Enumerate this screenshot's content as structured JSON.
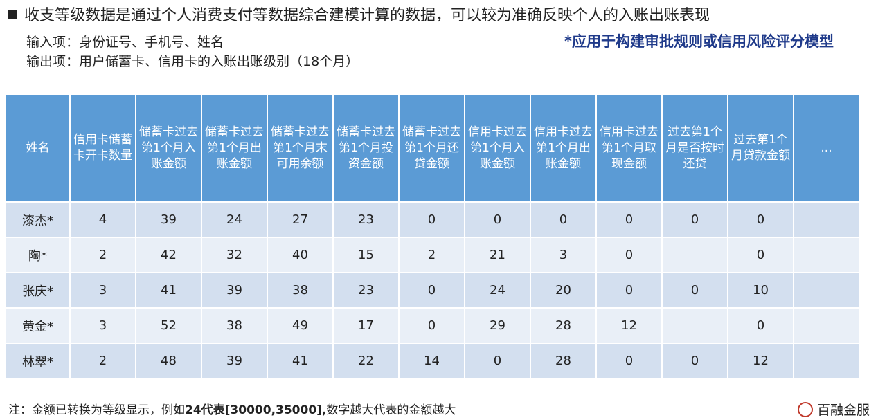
{
  "header": {
    "title": "收支等级数据是通过个人消费支付等数据综合建模计算的数据，可以较为准确反映个人的入账出账表现"
  },
  "info": {
    "input": "输入项：身份证号、手机号、姓名",
    "output": "输出项：用户储蓄卡、信用卡的入账出账级别（18个月）",
    "application": "*应用于构建审批规则或信用风险评分模型"
  },
  "table": {
    "columns": [
      "姓名",
      "信用卡储蓄卡开卡数量",
      "储蓄卡过去第1个月入账金额",
      "储蓄卡过去第1个月出账金额",
      "储蓄卡过去第1个月末可用余额",
      "储蓄卡过去第1个月投资金额",
      "储蓄卡过去第1个月还贷金额",
      "信用卡过去第1个月入账金额",
      "信用卡过去第1个月出账金额",
      "信用卡过去第1个月取现金额",
      "过去第1个月是否按时还贷",
      "过去第1个月贷款金额",
      "..."
    ],
    "rows": [
      [
        "漆杰*",
        4,
        39,
        24,
        27,
        23,
        0,
        0,
        0,
        0,
        0,
        0,
        null
      ],
      [
        "陶*",
        2,
        42,
        32,
        40,
        15,
        2,
        21,
        3,
        0,
        null,
        0,
        null
      ],
      [
        "张庆*",
        3,
        41,
        39,
        38,
        23,
        0,
        24,
        20,
        0,
        0,
        10,
        null
      ],
      [
        "黄金*",
        3,
        52,
        38,
        49,
        17,
        0,
        29,
        28,
        12,
        null,
        0,
        null
      ],
      [
        "林翠*",
        2,
        48,
        39,
        41,
        22,
        14,
        0,
        28,
        0,
        0,
        12,
        null
      ]
    ]
  },
  "footnote": {
    "prefix": "注：金额已转换为等级显示，例如",
    "bold": "24代表[30000,35000],",
    "suffix": "数字越大代表的金额越大"
  },
  "logo": {
    "text": "百融金服"
  }
}
